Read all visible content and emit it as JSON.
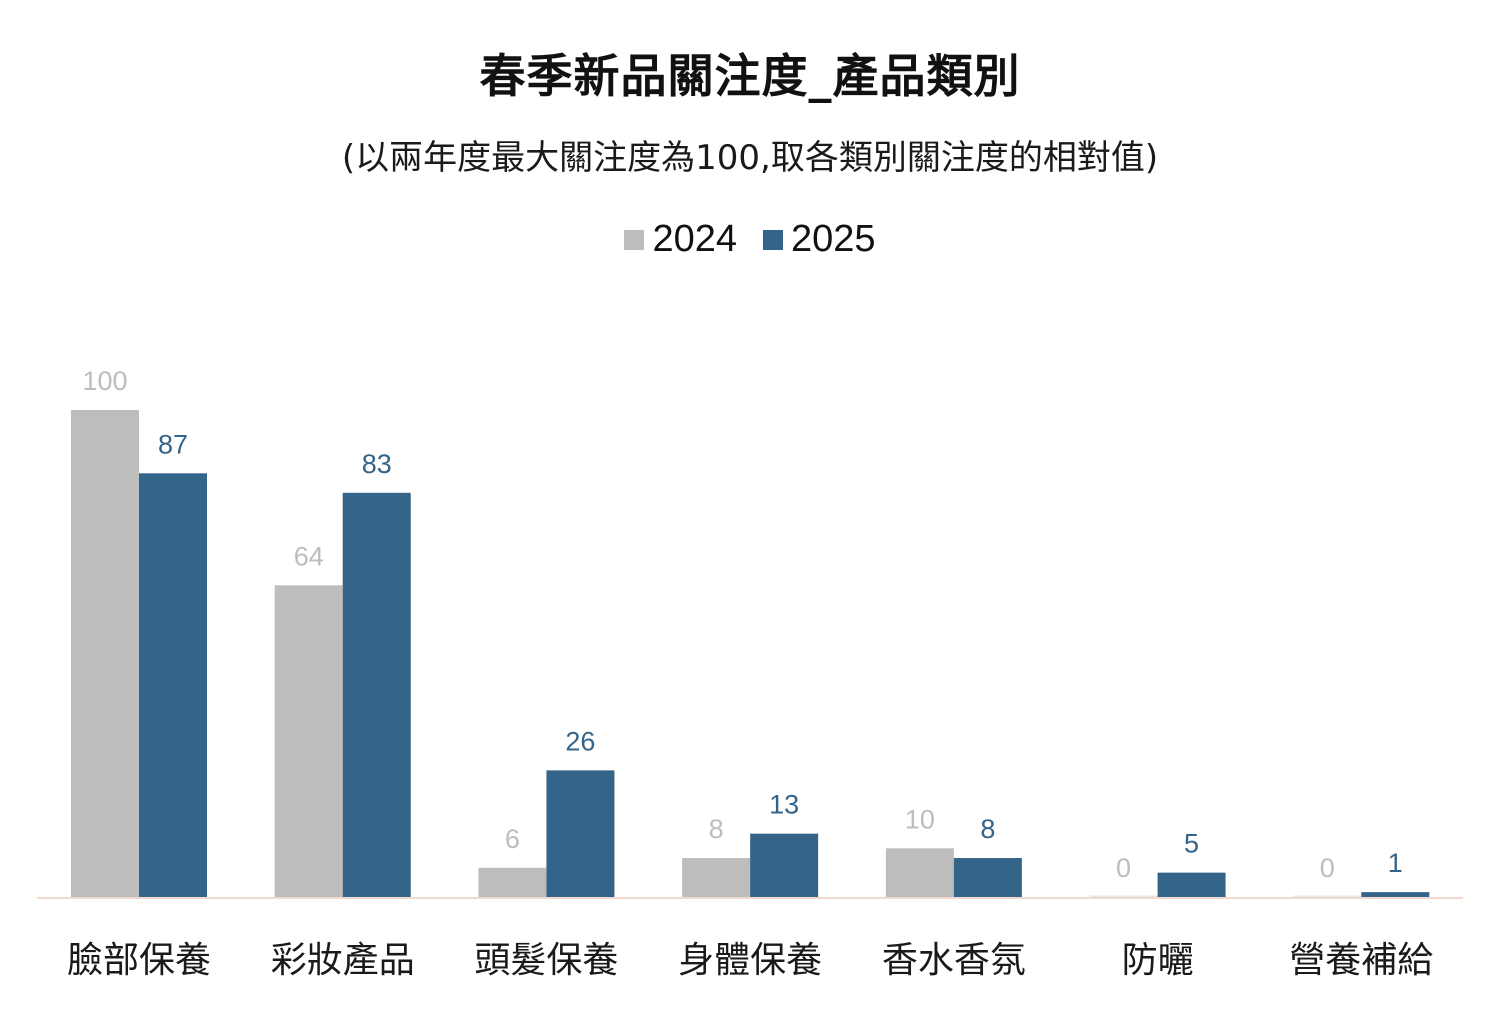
{
  "chart_data": {
    "type": "bar",
    "title": "春季新品關注度_產品類別",
    "subtitle": "(以兩年度最大關注度為100,取各類別關注度的相對值)",
    "categories": [
      "臉部保養",
      "彩妝產品",
      "頭髮保養",
      "身體保養",
      "香水香氛",
      "防曬",
      "營養補給"
    ],
    "series": [
      {
        "name": "2024",
        "values": [
          100,
          64,
          6,
          8,
          10,
          0,
          0
        ],
        "color": "#bdbdbd",
        "label_color": "#bdbdbd"
      },
      {
        "name": "2025",
        "values": [
          87,
          83,
          26,
          13,
          8,
          5,
          1
        ],
        "color": "#356489",
        "label_color": "#356489"
      }
    ],
    "ylim": [
      0,
      100
    ],
    "grid": false,
    "legend": "top-center",
    "axis_line_color": "#f2d9d0"
  }
}
